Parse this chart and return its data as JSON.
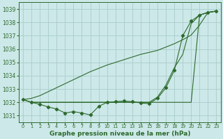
{
  "title": "Graphe pression niveau de la mer (hPa)",
  "background_color": "#cce8e8",
  "grid_color": "#aacccc",
  "line_color": "#2d6a2d",
  "x_labels": [
    "0",
    "1",
    "2",
    "3",
    "4",
    "5",
    "6",
    "7",
    "8",
    "9",
    "10",
    "11",
    "12",
    "13",
    "14",
    "15",
    "16",
    "17",
    "18",
    "19",
    "20",
    "21",
    "22",
    "23"
  ],
  "ylim": [
    1030.5,
    1039.5
  ],
  "yticks": [
    1031,
    1032,
    1033,
    1034,
    1035,
    1036,
    1037,
    1038,
    1039
  ],
  "series1_markers": [
    1032.2,
    1032.0,
    1031.85,
    1031.65,
    1031.5,
    1031.2,
    1031.3,
    1031.2,
    1031.05,
    1031.7,
    1032.0,
    1032.05,
    1032.1,
    1032.05,
    1031.95,
    1031.9,
    1032.3,
    1033.1,
    1034.4,
    1037.0,
    1038.1,
    1038.55,
    1038.75,
    1038.85
  ],
  "series2_straight": [
    1032.2,
    1032.0,
    1032.0,
    1032.0,
    1032.0,
    1032.0,
    1032.0,
    1032.0,
    1032.0,
    1032.0,
    1032.0,
    1032.0,
    1032.0,
    1032.0,
    1032.0,
    1032.0,
    1032.0,
    1032.0,
    1032.0,
    1032.0,
    1032.0,
    1038.55,
    1038.75,
    1038.85
  ],
  "series3_rising": [
    1032.2,
    1032.3,
    1032.5,
    1032.8,
    1033.1,
    1033.4,
    1033.7,
    1034.0,
    1034.3,
    1034.55,
    1034.8,
    1035.0,
    1035.2,
    1035.4,
    1035.6,
    1035.75,
    1035.9,
    1036.15,
    1036.4,
    1036.7,
    1037.05,
    1037.8,
    1038.75,
    1038.85
  ],
  "series4_mid": [
    1032.2,
    1032.0,
    1032.0,
    1032.0,
    1032.0,
    1032.0,
    1032.0,
    1032.0,
    1032.0,
    1032.0,
    1032.0,
    1032.0,
    1032.0,
    1032.0,
    1032.0,
    1032.0,
    1032.4,
    1033.3,
    1034.6,
    1035.6,
    1037.9,
    1038.55,
    1038.75,
    1038.85
  ]
}
